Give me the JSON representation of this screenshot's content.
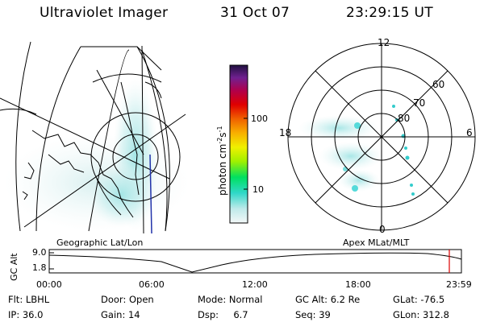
{
  "header": {
    "title": "Ultraviolet Imager",
    "date": "31 Oct 07",
    "time": "23:29:15 UT"
  },
  "left_panel": {
    "label": "Geographic Lat/Lon"
  },
  "right_panel": {
    "label": "Apex MLat/MLT",
    "mlt_labels": [
      "12",
      "18",
      "6",
      "0"
    ],
    "lat_labels": [
      "60",
      "70",
      "80"
    ]
  },
  "colorbar": {
    "unit": "photon cm",
    "unit_sup1": "-2",
    "unit_mid": "s",
    "unit_sup2": "-1",
    "tick_labels": [
      "100",
      "10"
    ],
    "colors": [
      "#f4f8f8",
      "#a8e6e6",
      "#30d8c8",
      "#00e060",
      "#a0f000",
      "#f0f000",
      "#f8b000",
      "#f06000",
      "#e00000",
      "#b0004c",
      "#702090",
      "#201040"
    ]
  },
  "altitude_plot": {
    "ylabel": "GC Alt",
    "y_ticks": [
      "9.0",
      "1.8"
    ],
    "x_ticks": [
      "00:00",
      "06:00",
      "12:00",
      "18:00",
      "23:59"
    ],
    "marker_color": "#dd0000"
  },
  "info": {
    "row1": [
      {
        "label": "Flt:",
        "value": "LBHL"
      },
      {
        "label": "Door:",
        "value": "Open"
      },
      {
        "label": "Mode:",
        "value": "Normal"
      },
      {
        "label": "GC Alt:",
        "value": "6.2 Re"
      },
      {
        "label": "GLat:",
        "value": "-76.5"
      }
    ],
    "row2": [
      {
        "label": "IP:",
        "value": "36.0"
      },
      {
        "label": "Gain:",
        "value": "14"
      },
      {
        "label": "Dsp:",
        "value": "6.7"
      },
      {
        "label": "Seq:",
        "value": "39"
      },
      {
        "label": "GLon:",
        "value": "312.8"
      }
    ]
  }
}
